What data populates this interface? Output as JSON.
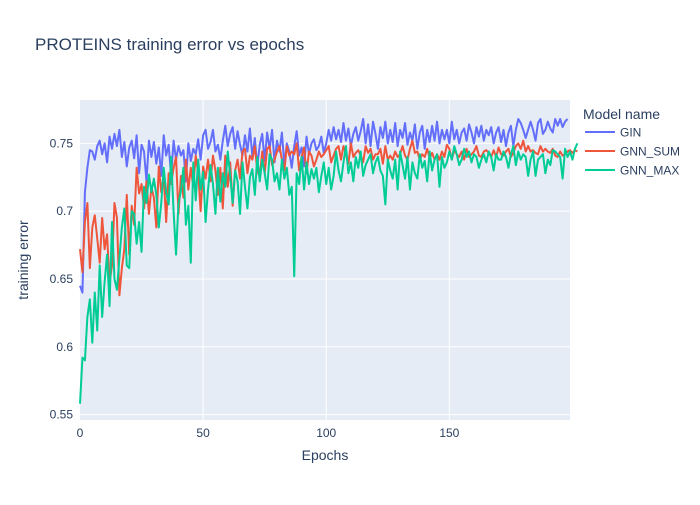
{
  "chart_data": {
    "type": "line",
    "title": "PROTEINS training error vs epochs",
    "xlabel": "Epochs",
    "ylabel": "training error",
    "xlim": [
      0,
      199
    ],
    "ylim": [
      0.546,
      0.782
    ],
    "xticks": [
      0,
      50,
      100,
      150
    ],
    "yticks": [
      0.55,
      0.6,
      0.65,
      0.7,
      0.75
    ],
    "ytick_labels": [
      "0.55",
      "0.6",
      "0.65",
      "0.7",
      "0.75"
    ],
    "grid": true,
    "background": "#E5ECF6",
    "legend": {
      "title": "Model name",
      "placement": "right"
    },
    "series": [
      {
        "name": "GIN",
        "color": "#636EFA",
        "values": [
          0.645,
          0.64,
          0.714,
          0.732,
          0.745,
          0.744,
          0.738,
          0.748,
          0.752,
          0.742,
          0.75,
          0.736,
          0.755,
          0.746,
          0.757,
          0.748,
          0.76,
          0.74,
          0.751,
          0.733,
          0.747,
          0.752,
          0.739,
          0.756,
          0.728,
          0.749,
          0.744,
          0.722,
          0.752,
          0.74,
          0.751,
          0.735,
          0.747,
          0.726,
          0.756,
          0.741,
          0.749,
          0.726,
          0.752,
          0.738,
          0.748,
          0.741,
          0.745,
          0.722,
          0.75,
          0.737,
          0.746,
          0.742,
          0.753,
          0.738,
          0.756,
          0.76,
          0.746,
          0.751,
          0.76,
          0.744,
          0.749,
          0.738,
          0.752,
          0.763,
          0.748,
          0.757,
          0.762,
          0.746,
          0.759,
          0.749,
          0.741,
          0.756,
          0.744,
          0.761,
          0.74,
          0.754,
          0.733,
          0.749,
          0.757,
          0.737,
          0.758,
          0.746,
          0.76,
          0.736,
          0.752,
          0.744,
          0.758,
          0.734,
          0.75,
          0.744,
          0.732,
          0.748,
          0.759,
          0.741,
          0.747,
          0.733,
          0.755,
          0.742,
          0.75,
          0.753,
          0.745,
          0.748,
          0.755,
          0.743,
          0.75,
          0.76,
          0.752,
          0.762,
          0.753,
          0.76,
          0.751,
          0.765,
          0.752,
          0.761,
          0.748,
          0.757,
          0.762,
          0.752,
          0.759,
          0.768,
          0.75,
          0.764,
          0.748,
          0.766,
          0.757,
          0.746,
          0.762,
          0.754,
          0.766,
          0.75,
          0.76,
          0.751,
          0.765,
          0.748,
          0.76,
          0.754,
          0.765,
          0.749,
          0.758,
          0.752,
          0.764,
          0.746,
          0.758,
          0.763,
          0.746,
          0.76,
          0.751,
          0.763,
          0.752,
          0.766,
          0.75,
          0.76,
          0.753,
          0.76,
          0.75,
          0.766,
          0.753,
          0.76,
          0.75,
          0.758,
          0.761,
          0.752,
          0.764,
          0.758,
          0.75,
          0.762,
          0.755,
          0.763,
          0.752,
          0.76,
          0.756,
          0.762,
          0.75,
          0.758,
          0.762,
          0.751,
          0.76,
          0.748,
          0.758,
          0.763,
          0.748,
          0.76,
          0.768,
          0.765,
          0.76,
          0.754,
          0.76,
          0.766,
          0.76,
          0.752,
          0.765,
          0.768,
          0.757,
          0.76,
          0.766,
          0.761,
          0.758,
          0.768,
          0.763,
          0.768,
          0.762,
          0.766,
          0.768
        ]
      },
      {
        "name": "GNN_SUM",
        "color": "#EF553B",
        "values": [
          0.672,
          0.655,
          0.692,
          0.706,
          0.658,
          0.688,
          0.697,
          0.68,
          0.662,
          0.695,
          0.672,
          0.683,
          0.647,
          0.66,
          0.706,
          0.695,
          0.638,
          0.658,
          0.672,
          0.712,
          0.668,
          0.704,
          0.69,
          0.732,
          0.713,
          0.72,
          0.702,
          0.722,
          0.698,
          0.718,
          0.71,
          0.688,
          0.733,
          0.714,
          0.726,
          0.692,
          0.728,
          0.72,
          0.732,
          0.74,
          0.698,
          0.726,
          0.71,
          0.738,
          0.716,
          0.732,
          0.718,
          0.741,
          0.728,
          0.7,
          0.733,
          0.724,
          0.738,
          0.722,
          0.741,
          0.73,
          0.712,
          0.732,
          0.702,
          0.741,
          0.718,
          0.736,
          0.704,
          0.73,
          0.738,
          0.724,
          0.744,
          0.746,
          0.728,
          0.741,
          0.738,
          0.748,
          0.73,
          0.725,
          0.744,
          0.728,
          0.746,
          0.748,
          0.734,
          0.738,
          0.744,
          0.748,
          0.738,
          0.73,
          0.748,
          0.741,
          0.744,
          0.742,
          0.75,
          0.73,
          0.74,
          0.747,
          0.728,
          0.744,
          0.741,
          0.733,
          0.738,
          0.744,
          0.74,
          0.742,
          0.745,
          0.748,
          0.736,
          0.741,
          0.746,
          0.748,
          0.738,
          0.748,
          0.742,
          0.735,
          0.75,
          0.74,
          0.743,
          0.745,
          0.741,
          0.736,
          0.748,
          0.743,
          0.746,
          0.738,
          0.742,
          0.742,
          0.746,
          0.735,
          0.748,
          0.738,
          0.741,
          0.738,
          0.744,
          0.74,
          0.742,
          0.748,
          0.741,
          0.738,
          0.746,
          0.752,
          0.743,
          0.744,
          0.738,
          0.742,
          0.74,
          0.746,
          0.739,
          0.743,
          0.738,
          0.742,
          0.738,
          0.744,
          0.74,
          0.749,
          0.746,
          0.738,
          0.745,
          0.742,
          0.74,
          0.744,
          0.738,
          0.746,
          0.74,
          0.742,
          0.744,
          0.748,
          0.741,
          0.74,
          0.744,
          0.745,
          0.743,
          0.74,
          0.745,
          0.74,
          0.747,
          0.742,
          0.741,
          0.744,
          0.746,
          0.74,
          0.743,
          0.748,
          0.75,
          0.746,
          0.752,
          0.744,
          0.748,
          0.744,
          0.745,
          0.743,
          0.742,
          0.748,
          0.744,
          0.746,
          0.744,
          0.743,
          0.746,
          0.741,
          0.74,
          0.744,
          0.741,
          0.742,
          0.744,
          0.745,
          0.743,
          0.745,
          0.744
        ]
      },
      {
        "name": "GNN_MAX",
        "color": "#00CC96",
        "values": [
          0.558,
          0.592,
          0.59,
          0.622,
          0.635,
          0.603,
          0.64,
          0.612,
          0.66,
          0.622,
          0.648,
          0.668,
          0.63,
          0.692,
          0.65,
          0.642,
          0.665,
          0.688,
          0.702,
          0.66,
          0.658,
          0.7,
          0.698,
          0.676,
          0.692,
          0.67,
          0.718,
          0.706,
          0.727,
          0.714,
          0.724,
          0.712,
          0.688,
          0.706,
          0.732,
          0.714,
          0.705,
          0.74,
          0.7,
          0.668,
          0.706,
          0.715,
          0.732,
          0.69,
          0.704,
          0.662,
          0.736,
          0.708,
          0.738,
          0.716,
          0.729,
          0.692,
          0.716,
          0.734,
          0.72,
          0.698,
          0.732,
          0.707,
          0.728,
          0.718,
          0.744,
          0.726,
          0.706,
          0.73,
          0.722,
          0.698,
          0.736,
          0.718,
          0.702,
          0.725,
          0.731,
          0.712,
          0.74,
          0.722,
          0.738,
          0.728,
          0.716,
          0.742,
          0.738,
          0.722,
          0.728,
          0.716,
          0.738,
          0.724,
          0.732,
          0.712,
          0.718,
          0.652,
          0.728,
          0.72,
          0.74,
          0.716,
          0.736,
          0.72,
          0.731,
          0.724,
          0.732,
          0.714,
          0.726,
          0.736,
          0.72,
          0.732,
          0.716,
          0.726,
          0.744,
          0.73,
          0.722,
          0.736,
          0.748,
          0.728,
          0.736,
          0.722,
          0.74,
          0.732,
          0.744,
          0.726,
          0.734,
          0.738,
          0.742,
          0.728,
          0.736,
          0.74,
          0.73,
          0.726,
          0.705,
          0.738,
          0.73,
          0.724,
          0.738,
          0.716,
          0.744,
          0.734,
          0.724,
          0.74,
          0.716,
          0.736,
          0.728,
          0.724,
          0.742,
          0.732,
          0.737,
          0.722,
          0.744,
          0.73,
          0.738,
          0.742,
          0.718,
          0.74,
          0.732,
          0.736,
          0.744,
          0.738,
          0.748,
          0.742,
          0.734,
          0.738,
          0.746,
          0.74,
          0.744,
          0.736,
          0.742,
          0.74,
          0.732,
          0.738,
          0.742,
          0.736,
          0.744,
          0.74,
          0.73,
          0.742,
          0.738,
          0.738,
          0.744,
          0.74,
          0.732,
          0.742,
          0.748,
          0.734,
          0.744,
          0.738,
          0.742,
          0.74,
          0.726,
          0.738,
          0.744,
          0.726,
          0.738,
          0.74,
          0.742,
          0.728,
          0.738,
          0.734,
          0.745,
          0.744,
          0.742,
          0.74,
          0.724,
          0.746,
          0.74,
          0.744,
          0.738,
          0.746,
          0.75
        ]
      }
    ]
  }
}
